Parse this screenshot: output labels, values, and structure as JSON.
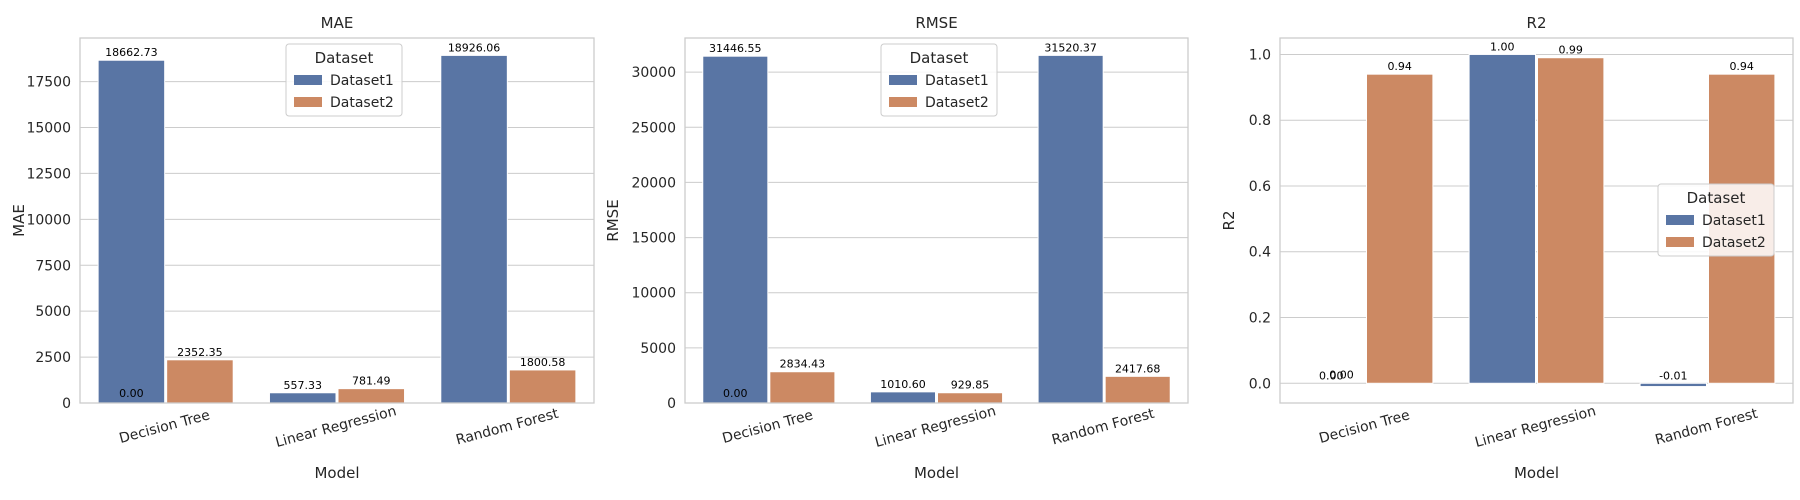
{
  "chart_data": [
    {
      "type": "bar",
      "title": "MAE",
      "xlabel": "Model",
      "ylabel": "MAE",
      "categories": [
        "Decision Tree",
        "Linear Regression",
        "Random Forest"
      ],
      "series": [
        {
          "name": "Dataset1",
          "values": [
            0.0,
            557.33,
            18926.06
          ],
          "labels": [
            "0.00",
            "557.33",
            "18926.06"
          ]
        },
        {
          "name": "Dataset2",
          "values": [
            2352.35,
            781.49,
            1800.58
          ],
          "labels": [
            "2352.35",
            "781.49",
            "1800.58"
          ]
        }
      ],
      "overlay": {
        "category_index": 0,
        "value": 18662.73,
        "label": "18662.73",
        "series_index": 0
      },
      "ylim": [
        0,
        19873.36
      ],
      "yticks": [
        0,
        2500,
        5000,
        7500,
        10000,
        12500,
        15000,
        17500
      ],
      "ytick_labels": [
        "0",
        "2500",
        "5000",
        "7500",
        "10000",
        "12500",
        "15000",
        "17500"
      ],
      "grid": true,
      "legend": {
        "title": "Dataset",
        "placement": "upper-center"
      }
    },
    {
      "type": "bar",
      "title": "RMSE",
      "xlabel": "Model",
      "ylabel": "RMSE",
      "categories": [
        "Decision Tree",
        "Linear Regression",
        "Random Forest"
      ],
      "series": [
        {
          "name": "Dataset1",
          "values": [
            0.0,
            1010.6,
            31520.37
          ],
          "labels": [
            "0.00",
            "1010.60",
            "31520.37"
          ]
        },
        {
          "name": "Dataset2",
          "values": [
            2834.43,
            929.85,
            2417.68
          ],
          "labels": [
            "2834.43",
            "929.85",
            "2417.68"
          ]
        }
      ],
      "overlay": {
        "category_index": 0,
        "value": 31446.55,
        "label": "31446.55",
        "series_index": 0
      },
      "ylim": [
        0,
        33096.39
      ],
      "yticks": [
        0,
        5000,
        10000,
        15000,
        20000,
        25000,
        30000
      ],
      "ytick_labels": [
        "0",
        "5000",
        "10000",
        "15000",
        "20000",
        "25000",
        "30000"
      ],
      "grid": true,
      "legend": {
        "title": "Dataset",
        "placement": "upper-center"
      }
    },
    {
      "type": "bar",
      "title": "R2",
      "xlabel": "Model",
      "ylabel": "R2",
      "categories": [
        "Decision Tree",
        "Linear Regression",
        "Random Forest"
      ],
      "series": [
        {
          "name": "Dataset1",
          "values": [
            0.0,
            1.0,
            -0.01
          ],
          "labels": [
            "0.00",
            "1.00",
            "-0.01"
          ]
        },
        {
          "name": "Dataset2",
          "values": [
            0.94,
            0.99,
            0.94
          ],
          "labels": [
            "0.94",
            "0.99",
            "0.94"
          ]
        }
      ],
      "extra_labels": [
        {
          "category_index": 0,
          "label": "0.00",
          "position": "between"
        }
      ],
      "ylim": [
        -0.06,
        1.05
      ],
      "yticks": [
        0.0,
        0.2,
        0.4,
        0.6,
        0.8,
        1.0
      ],
      "ytick_labels": [
        "0.0",
        "0.2",
        "0.4",
        "0.6",
        "0.8",
        "1.0"
      ],
      "grid": true,
      "legend": {
        "title": "Dataset",
        "placement": "center-right"
      }
    }
  ],
  "colors": {
    "Dataset1": "#5975a4",
    "Dataset2": "#cc8963",
    "grid": "#cccccc",
    "spine": "#cccccc"
  }
}
